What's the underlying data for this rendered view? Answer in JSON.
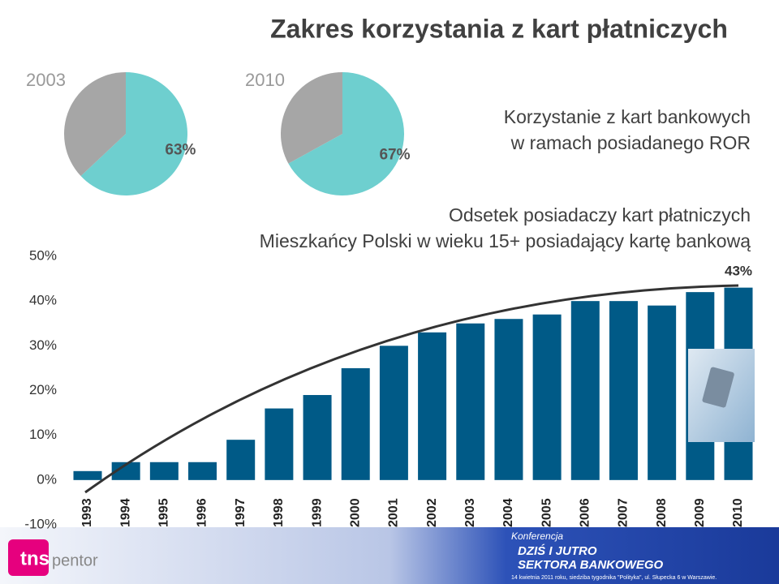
{
  "title": "Zakres korzystania z kart płatniczych",
  "caption": [
    "Korzystanie z kart bankowych",
    "w ramach posiadanego ROR"
  ],
  "footer": {
    "logo": [
      "tns",
      "pentor"
    ],
    "event": [
      "Konferencja",
      "DZIŚ I JUTRO",
      "SEKTORA BANKOWEGO"
    ],
    "note": "14 kwietnia 2011 roku, siedziba tygodnika \"Polityka\", ul. Słupecka 6 w Warszawie."
  },
  "chart_data": [
    {
      "type": "pie",
      "title": "2003",
      "values": [
        63,
        37
      ],
      "value_labels": [
        "63%",
        null
      ],
      "colors": [
        "#6ecfcf",
        "#a6a6a6"
      ]
    },
    {
      "type": "pie",
      "title": "2010",
      "values": [
        67,
        33
      ],
      "value_labels": [
        "67%",
        null
      ],
      "colors": [
        "#6ecfcf",
        "#a6a6a6"
      ]
    },
    {
      "type": "bar",
      "title": "Odsetek posiadaczy kart płatniczych",
      "subtitle": "Mieszkańcy Polski w wieku 15+ posiadający  kartę bankową",
      "categories": [
        "1993",
        "1994",
        "1995",
        "1996",
        "1997",
        "1998",
        "1999",
        "2000",
        "2001",
        "2002",
        "2003",
        "2004",
        "2005",
        "2006",
        "2007",
        "2008",
        "2009",
        "2010"
      ],
      "values": [
        2,
        4,
        4,
        4,
        9,
        16,
        19,
        25,
        30,
        33,
        35,
        36,
        37,
        40,
        40,
        39,
        42,
        43
      ],
      "value_labels": [
        null,
        null,
        null,
        null,
        null,
        null,
        null,
        null,
        null,
        null,
        null,
        null,
        null,
        null,
        null,
        null,
        null,
        "43%"
      ],
      "color": "#005a87",
      "ylim": [
        -10,
        50
      ],
      "yticks": [
        {
          "value": -10,
          "label": "-10%"
        },
        {
          "value": 0,
          "label": "0%"
        },
        {
          "value": 10,
          "label": "10%"
        },
        {
          "value": 20,
          "label": "20%"
        },
        {
          "value": 30,
          "label": "30%"
        },
        {
          "value": 40,
          "label": "40%"
        },
        {
          "value": 50,
          "label": "50%"
        }
      ],
      "grid": false
    }
  ]
}
